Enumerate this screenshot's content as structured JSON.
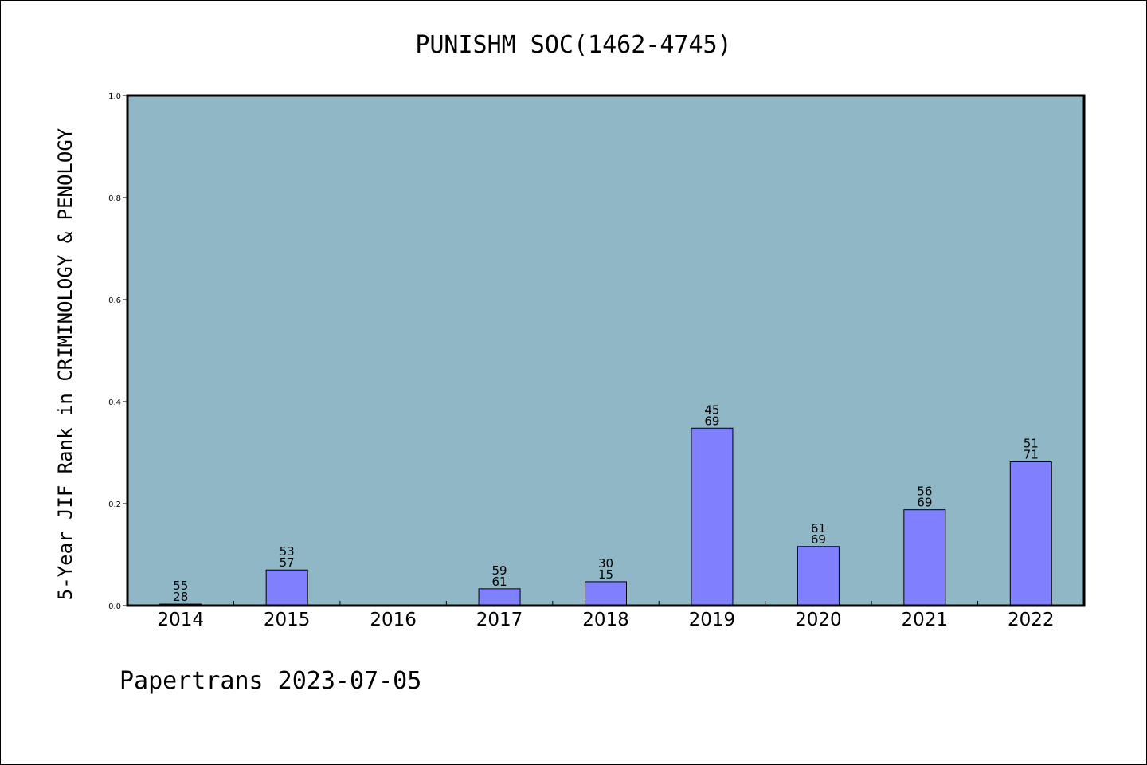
{
  "chart_data": {
    "type": "bar",
    "title": "PUNISHM SOC(1462-4745)",
    "ylabel": "5-Year JIF Rank in CRIMINOLOGY & PENOLOGY",
    "xlabel": "",
    "ylim": [
      0,
      1.0
    ],
    "yticks": [
      "0.0",
      "0.2",
      "0.4",
      "0.6",
      "0.8",
      "1.0"
    ],
    "categories": [
      "2014",
      "2015",
      "2016",
      "2017",
      "2018",
      "2019",
      "2020",
      "2021",
      "2022"
    ],
    "values": [
      0.003,
      0.07,
      null,
      0.033,
      0.047,
      0.348,
      0.116,
      0.188,
      0.282
    ],
    "bar_labels": [
      [
        "55",
        "28"
      ],
      [
        "53",
        "57"
      ],
      null,
      [
        "59",
        "61"
      ],
      [
        "30",
        "15"
      ],
      [
        "45",
        "69"
      ],
      [
        "61",
        "69"
      ],
      [
        "56",
        "69"
      ],
      [
        "51",
        "71"
      ]
    ],
    "grid": false,
    "colors": {
      "plot_bg": "#8fb7c5",
      "bar": "#8080ff",
      "bar_edge": "#000000"
    }
  },
  "footer": "Papertrans 2023-07-05"
}
